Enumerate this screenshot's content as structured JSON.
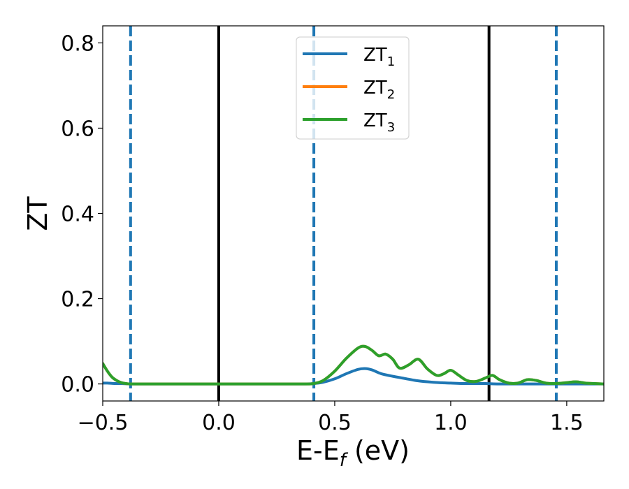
{
  "chart_data": {
    "type": "line",
    "xlabel": {
      "main": "E-E",
      "sub": "f",
      "tail": " (eV)"
    },
    "ylabel": "ZT",
    "xlim": [
      -0.5,
      1.66
    ],
    "ylim": [
      -0.04,
      0.84
    ],
    "xticks": [
      {
        "value": -0.5,
        "label": "−0.5"
      },
      {
        "value": 0.0,
        "label": "0.0"
      },
      {
        "value": 0.5,
        "label": "0.5"
      },
      {
        "value": 1.0,
        "label": "1.0"
      },
      {
        "value": 1.5,
        "label": "1.5"
      }
    ],
    "yticks": [
      {
        "value": 0.0,
        "label": "0.0"
      },
      {
        "value": 0.2,
        "label": "0.2"
      },
      {
        "value": 0.4,
        "label": "0.4"
      },
      {
        "value": 0.6,
        "label": "0.6"
      },
      {
        "value": 0.8,
        "label": "0.8"
      }
    ],
    "vlines": [
      {
        "x": -0.38,
        "style": "dashed",
        "color": "#1f77b4"
      },
      {
        "x": 0.0,
        "style": "solid",
        "color": "#000000"
      },
      {
        "x": 0.41,
        "style": "dashed",
        "color": "#1f77b4"
      },
      {
        "x": 1.165,
        "style": "solid",
        "color": "#000000"
      },
      {
        "x": 1.455,
        "style": "dashed",
        "color": "#1f77b4"
      }
    ],
    "legend_position": "top-center",
    "series": [
      {
        "name": "ZT",
        "sub": "1",
        "color": "#1f77b4",
        "x": [
          -0.5,
          -0.48,
          -0.45,
          -0.42,
          -0.38,
          -0.3,
          0.0,
          0.35,
          0.41,
          0.45,
          0.5,
          0.55,
          0.6,
          0.63,
          0.66,
          0.7,
          0.75,
          0.8,
          0.85,
          0.9,
          0.95,
          1.0,
          1.05,
          1.1,
          1.15,
          1.2,
          1.3,
          1.4,
          1.5,
          1.66
        ],
        "y": [
          0.002,
          0.002,
          0.001,
          0.001,
          0.0,
          0.0,
          0.0,
          0.0,
          0.001,
          0.004,
          0.012,
          0.024,
          0.034,
          0.036,
          0.033,
          0.024,
          0.018,
          0.013,
          0.008,
          0.005,
          0.003,
          0.002,
          0.001,
          0.001,
          0.001,
          0.0,
          0.0,
          0.0,
          0.0,
          0.0
        ]
      },
      {
        "name": "ZT",
        "sub": "2",
        "color": "#ff7f0e",
        "x": [
          -0.5,
          -0.48,
          -0.46,
          -0.44,
          -0.42,
          -0.4,
          -0.38,
          -0.3,
          0.0,
          0.3,
          0.38,
          0.41,
          0.45,
          0.5,
          0.55,
          0.6,
          0.63,
          0.66,
          0.69,
          0.72,
          0.75,
          0.78,
          0.82,
          0.86,
          0.9,
          0.94,
          0.97,
          1.0,
          1.03,
          1.07,
          1.11,
          1.15,
          1.18,
          1.21,
          1.25,
          1.29,
          1.33,
          1.37,
          1.41,
          1.45,
          1.5,
          1.54,
          1.58,
          1.62,
          1.66
        ],
        "y": [
          0.048,
          0.03,
          0.016,
          0.008,
          0.003,
          0.001,
          0.0,
          0.0,
          0.0,
          0.0,
          0.0,
          0.001,
          0.008,
          0.03,
          0.06,
          0.084,
          0.088,
          0.079,
          0.066,
          0.07,
          0.058,
          0.037,
          0.045,
          0.058,
          0.035,
          0.02,
          0.024,
          0.032,
          0.022,
          0.008,
          0.006,
          0.014,
          0.02,
          0.01,
          0.002,
          0.002,
          0.01,
          0.008,
          0.002,
          0.001,
          0.003,
          0.005,
          0.002,
          0.001,
          0.0
        ]
      },
      {
        "name": "ZT",
        "sub": "3",
        "color": "#2ca02c",
        "x": [
          -0.5,
          -0.48,
          -0.46,
          -0.44,
          -0.42,
          -0.4,
          -0.38,
          -0.3,
          0.0,
          0.3,
          0.38,
          0.41,
          0.45,
          0.5,
          0.55,
          0.6,
          0.63,
          0.66,
          0.69,
          0.72,
          0.75,
          0.78,
          0.82,
          0.86,
          0.9,
          0.94,
          0.97,
          1.0,
          1.03,
          1.07,
          1.11,
          1.15,
          1.18,
          1.21,
          1.25,
          1.29,
          1.33,
          1.37,
          1.41,
          1.45,
          1.5,
          1.54,
          1.58,
          1.62,
          1.66
        ],
        "y": [
          0.048,
          0.03,
          0.016,
          0.008,
          0.003,
          0.001,
          0.0,
          0.0,
          0.0,
          0.0,
          0.0,
          0.001,
          0.008,
          0.03,
          0.06,
          0.084,
          0.088,
          0.079,
          0.066,
          0.07,
          0.058,
          0.037,
          0.045,
          0.058,
          0.035,
          0.02,
          0.024,
          0.032,
          0.022,
          0.008,
          0.006,
          0.014,
          0.02,
          0.01,
          0.002,
          0.002,
          0.01,
          0.008,
          0.002,
          0.001,
          0.003,
          0.005,
          0.002,
          0.001,
          0.0
        ]
      }
    ]
  }
}
